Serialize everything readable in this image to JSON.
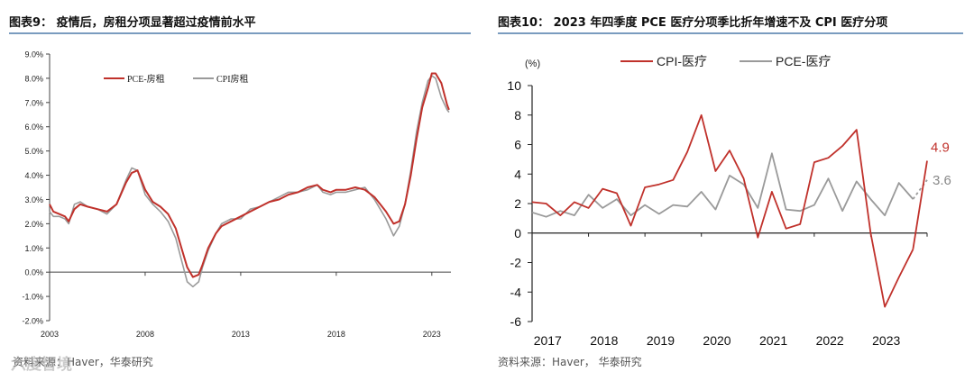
{
  "left": {
    "title": "图表9：  疫情后，房租分项显著超过疫情前水平",
    "source": "资料来源：Haver，华泰研究",
    "watermark": "六度智境"
  },
  "right": {
    "title": "图表10：  2023 年四季度 PCE 医疗分项季比折年增速不及 CPI 医疗分项",
    "source": "资料来源：Haver，  华泰研究"
  },
  "colors": {
    "pce": "#c0312b",
    "cpi": "#9a9a9a",
    "rule": "#7a9cbf"
  },
  "chart_data": [
    {
      "type": "line",
      "title": "",
      "xlabel": "",
      "ylabel": "",
      "x_range": [
        2003,
        2024
      ],
      "ylim": [
        -2.0,
        9.0
      ],
      "yticks": [
        -2.0,
        -1.0,
        0.0,
        1.0,
        2.0,
        3.0,
        4.0,
        5.0,
        6.0,
        7.0,
        8.0,
        9.0
      ],
      "ytick_labels": [
        "-2.0%",
        "-1.0%",
        "0.0%",
        "1.0%",
        "2.0%",
        "3.0%",
        "4.0%",
        "5.0%",
        "6.0%",
        "7.0%",
        "8.0%",
        "9.0%"
      ],
      "xticks": [
        2003,
        2008,
        2013,
        2018,
        2023
      ],
      "xtick_labels": [
        "2003",
        "2008",
        "2013",
        "2018",
        "2023"
      ],
      "legend": {
        "placement": "top-left"
      },
      "series": [
        {
          "name": "PCE-房租",
          "points": [
            [
              2003.0,
              2.8
            ],
            [
              2003.2,
              2.5
            ],
            [
              2003.5,
              2.4
            ],
            [
              2003.8,
              2.3
            ],
            [
              2004.0,
              2.1
            ],
            [
              2004.3,
              2.6
            ],
            [
              2004.6,
              2.8
            ],
            [
              2005.0,
              2.7
            ],
            [
              2005.5,
              2.6
            ],
            [
              2006.0,
              2.5
            ],
            [
              2006.5,
              2.8
            ],
            [
              2007.0,
              3.7
            ],
            [
              2007.3,
              4.1
            ],
            [
              2007.6,
              4.2
            ],
            [
              2008.0,
              3.4
            ],
            [
              2008.4,
              2.9
            ],
            [
              2008.8,
              2.7
            ],
            [
              2009.2,
              2.4
            ],
            [
              2009.6,
              1.8
            ],
            [
              2009.9,
              1.0
            ],
            [
              2010.2,
              0.2
            ],
            [
              2010.5,
              -0.2
            ],
            [
              2010.8,
              -0.1
            ],
            [
              2011.0,
              0.3
            ],
            [
              2011.3,
              1.0
            ],
            [
              2011.7,
              1.6
            ],
            [
              2012.0,
              1.9
            ],
            [
              2012.5,
              2.1
            ],
            [
              2013.0,
              2.3
            ],
            [
              2013.5,
              2.5
            ],
            [
              2014.0,
              2.7
            ],
            [
              2014.5,
              2.9
            ],
            [
              2015.0,
              3.0
            ],
            [
              2015.5,
              3.2
            ],
            [
              2016.0,
              3.3
            ],
            [
              2016.5,
              3.5
            ],
            [
              2017.0,
              3.6
            ],
            [
              2017.3,
              3.4
            ],
            [
              2017.7,
              3.3
            ],
            [
              2018.0,
              3.4
            ],
            [
              2018.5,
              3.4
            ],
            [
              2019.0,
              3.5
            ],
            [
              2019.5,
              3.4
            ],
            [
              2020.0,
              3.1
            ],
            [
              2020.3,
              2.8
            ],
            [
              2020.6,
              2.5
            ],
            [
              2021.0,
              2.0
            ],
            [
              2021.3,
              2.1
            ],
            [
              2021.6,
              2.8
            ],
            [
              2021.9,
              4.0
            ],
            [
              2022.2,
              5.5
            ],
            [
              2022.5,
              6.8
            ],
            [
              2022.8,
              7.6
            ],
            [
              2023.0,
              8.2
            ],
            [
              2023.2,
              8.2
            ],
            [
              2023.5,
              7.8
            ],
            [
              2023.8,
              6.9
            ],
            [
              2023.9,
              6.7
            ]
          ]
        },
        {
          "name": "CPI房租",
          "points": [
            [
              2003.0,
              2.5
            ],
            [
              2003.2,
              2.3
            ],
            [
              2003.5,
              2.3
            ],
            [
              2003.8,
              2.2
            ],
            [
              2004.0,
              2.0
            ],
            [
              2004.3,
              2.8
            ],
            [
              2004.6,
              2.9
            ],
            [
              2005.0,
              2.7
            ],
            [
              2005.5,
              2.6
            ],
            [
              2006.0,
              2.4
            ],
            [
              2006.5,
              2.8
            ],
            [
              2007.0,
              3.8
            ],
            [
              2007.3,
              4.3
            ],
            [
              2007.6,
              4.2
            ],
            [
              2008.0,
              3.2
            ],
            [
              2008.4,
              2.8
            ],
            [
              2008.8,
              2.5
            ],
            [
              2009.2,
              2.1
            ],
            [
              2009.6,
              1.4
            ],
            [
              2009.9,
              0.5
            ],
            [
              2010.2,
              -0.4
            ],
            [
              2010.5,
              -0.6
            ],
            [
              2010.8,
              -0.4
            ],
            [
              2011.0,
              0.2
            ],
            [
              2011.3,
              0.9
            ],
            [
              2011.7,
              1.6
            ],
            [
              2012.0,
              2.0
            ],
            [
              2012.5,
              2.2
            ],
            [
              2013.0,
              2.2
            ],
            [
              2013.5,
              2.6
            ],
            [
              2014.0,
              2.7
            ],
            [
              2014.5,
              2.9
            ],
            [
              2015.0,
              3.1
            ],
            [
              2015.5,
              3.3
            ],
            [
              2016.0,
              3.3
            ],
            [
              2016.5,
              3.4
            ],
            [
              2017.0,
              3.6
            ],
            [
              2017.3,
              3.3
            ],
            [
              2017.7,
              3.2
            ],
            [
              2018.0,
              3.3
            ],
            [
              2018.5,
              3.3
            ],
            [
              2019.0,
              3.4
            ],
            [
              2019.5,
              3.5
            ],
            [
              2020.0,
              3.0
            ],
            [
              2020.3,
              2.6
            ],
            [
              2020.6,
              2.2
            ],
            [
              2021.0,
              1.5
            ],
            [
              2021.3,
              1.9
            ],
            [
              2021.6,
              2.8
            ],
            [
              2021.9,
              4.2
            ],
            [
              2022.2,
              5.8
            ],
            [
              2022.5,
              7.0
            ],
            [
              2022.8,
              7.9
            ],
            [
              2023.0,
              8.1
            ],
            [
              2023.2,
              8.0
            ],
            [
              2023.5,
              7.2
            ],
            [
              2023.8,
              6.7
            ],
            [
              2023.9,
              6.6
            ]
          ]
        }
      ]
    },
    {
      "type": "line",
      "title": "",
      "xlabel": "",
      "ylabel": "(%)",
      "x_range": [
        2017.0,
        2024.0
      ],
      "ylim": [
        -6,
        10
      ],
      "yticks": [
        -6,
        -4,
        -2,
        0,
        2,
        4,
        6,
        8,
        10
      ],
      "ytick_labels": [
        "-6",
        "-4",
        "-2",
        "0",
        "2",
        "4",
        "6",
        "8",
        "10"
      ],
      "xticks": [
        2017,
        2018,
        2019,
        2020,
        2021,
        2022,
        2023
      ],
      "xtick_labels": [
        "2017",
        "2018",
        "2019",
        "2020",
        "2021",
        "2022",
        "2023"
      ],
      "legend": {
        "placement": "top"
      },
      "end_labels": {
        "cpi": "4.9",
        "pce": "3.6"
      },
      "series": [
        {
          "name": "CPI-医疗",
          "points": [
            [
              2017.0,
              2.1
            ],
            [
              2017.25,
              2.0
            ],
            [
              2017.5,
              1.2
            ],
            [
              2017.75,
              2.1
            ],
            [
              2018.0,
              1.7
            ],
            [
              2018.25,
              3.0
            ],
            [
              2018.5,
              2.7
            ],
            [
              2018.75,
              0.5
            ],
            [
              2019.0,
              3.1
            ],
            [
              2019.25,
              3.3
            ],
            [
              2019.5,
              3.6
            ],
            [
              2019.75,
              5.5
            ],
            [
              2020.0,
              8.0
            ],
            [
              2020.25,
              4.2
            ],
            [
              2020.5,
              5.6
            ],
            [
              2020.75,
              3.7
            ],
            [
              2021.0,
              -0.3
            ],
            [
              2021.25,
              2.8
            ],
            [
              2021.5,
              0.3
            ],
            [
              2021.75,
              0.6
            ],
            [
              2022.0,
              4.8
            ],
            [
              2022.25,
              5.1
            ],
            [
              2022.5,
              5.9
            ],
            [
              2022.75,
              7.0
            ],
            [
              2023.0,
              0.0
            ],
            [
              2023.25,
              -5.0
            ],
            [
              2023.5,
              -3.0
            ],
            [
              2023.75,
              -1.1
            ],
            [
              2024.0,
              4.9
            ]
          ]
        },
        {
          "name": "PCE-医疗",
          "points": [
            [
              2017.0,
              1.4
            ],
            [
              2017.25,
              1.1
            ],
            [
              2017.5,
              1.5
            ],
            [
              2017.75,
              1.2
            ],
            [
              2018.0,
              2.6
            ],
            [
              2018.25,
              1.7
            ],
            [
              2018.5,
              2.3
            ],
            [
              2018.75,
              1.2
            ],
            [
              2019.0,
              1.9
            ],
            [
              2019.25,
              1.3
            ],
            [
              2019.5,
              1.9
            ],
            [
              2019.75,
              1.8
            ],
            [
              2020.0,
              2.8
            ],
            [
              2020.25,
              1.6
            ],
            [
              2020.5,
              3.9
            ],
            [
              2020.75,
              3.3
            ],
            [
              2021.0,
              1.7
            ],
            [
              2021.25,
              5.4
            ],
            [
              2021.5,
              1.6
            ],
            [
              2021.75,
              1.5
            ],
            [
              2022.0,
              1.9
            ],
            [
              2022.25,
              3.7
            ],
            [
              2022.5,
              1.5
            ],
            [
              2022.75,
              3.5
            ],
            [
              2023.0,
              2.3
            ],
            [
              2023.25,
              1.2
            ],
            [
              2023.5,
              3.4
            ],
            [
              2023.75,
              2.3
            ],
            [
              2024.0,
              3.6
            ]
          ]
        }
      ]
    }
  ]
}
